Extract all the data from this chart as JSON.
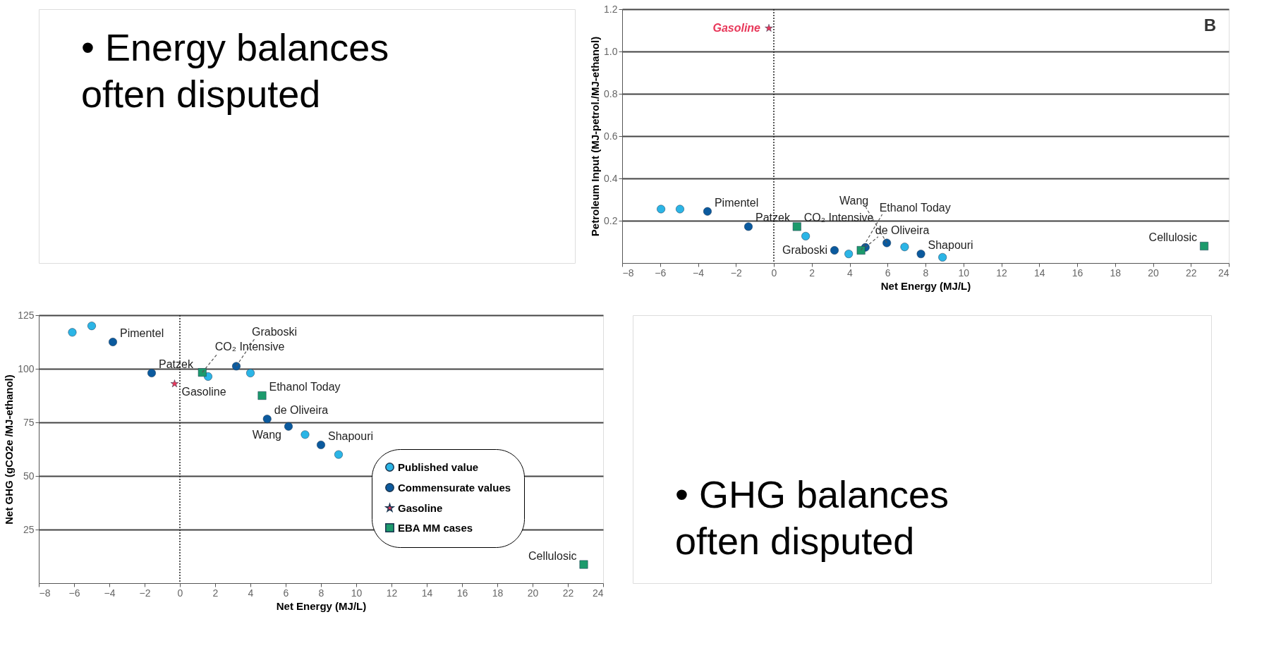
{
  "chart_data": [
    {
      "type": "scatter",
      "xlabel": "Net Energy (MJ/L)",
      "ylabel": "Net GHG (gCO2e /MJ-ethanol)",
      "xlim": [
        -8,
        24
      ],
      "xticks": [
        -8,
        -6,
        -4,
        -2,
        0,
        2,
        4,
        6,
        8,
        10,
        12,
        14,
        16,
        18,
        20,
        22,
        24
      ],
      "ylim": [
        0,
        125
      ],
      "yticks": [
        25,
        50,
        75,
        100,
        125
      ],
      "grid": "y",
      "legend": "bottom right",
      "series": [
        {
          "name": "Published value",
          "color": "#2bb5e6",
          "marker": "circle",
          "x": [
            -6.1,
            -5.0,
            1.6,
            4.0,
            7.1,
            9.0
          ],
          "values": [
            117,
            120,
            96.4,
            98,
            69.3,
            60
          ]
        },
        {
          "name": "Commensurate values",
          "color": "#0b5a9e",
          "marker": "circle",
          "x": [
            -3.8,
            -1.6,
            3.2,
            4.95,
            6.16,
            8.0
          ],
          "values": [
            112.5,
            98,
            101.2,
            76.6,
            73.1,
            64.5
          ]
        },
        {
          "name": "Gasoline",
          "color": "#e8385a",
          "marker": "star",
          "x": [
            -0.3
          ],
          "values": [
            93
          ]
        },
        {
          "name": "EBA MM cases",
          "color": "#1c9a6c",
          "marker": "square",
          "x": [
            1.27,
            4.66,
            22.9
          ],
          "values": [
            98.3,
            87.5,
            8.7
          ]
        }
      ],
      "ref_lines": [
        {
          "axis": "x",
          "value": 0,
          "line_style": "dotted"
        }
      ],
      "annotations": [
        "• GHG balances\noften disputed",
        {
          "text": "Pimentel",
          "x": -3.8,
          "y": 112.5
        },
        {
          "text": "Patzek",
          "x": -1.6,
          "y": 98
        },
        {
          "text": "Gasoline",
          "x": -0.3,
          "y": 93
        },
        {
          "text": "CO₂ Intensive",
          "x": 1.27,
          "y": 98.3
        },
        {
          "text": "Graboski",
          "x": 3.2,
          "y": 101.2
        },
        {
          "text": "Ethanol Today",
          "x": 4.66,
          "y": 87.5
        },
        {
          "text": "de Oliveira",
          "x": 4.95,
          "y": 76.6
        },
        {
          "text": "Wang",
          "x": 6.16,
          "y": 73.1
        },
        {
          "text": "Shapouri",
          "x": 8.0,
          "y": 64.5
        },
        {
          "text": "Cellulosic",
          "x": 22.9,
          "y": 8.7
        }
      ]
    },
    {
      "type": "scatter",
      "title": "B",
      "xlabel": "Net Energy (MJ/L)",
      "ylabel": "Petroleum Input (MJ-petrol./MJ-ethanol)",
      "xlim": [
        -8,
        24
      ],
      "xticks": [
        -8,
        -6,
        -4,
        -2,
        0,
        2,
        4,
        6,
        8,
        10,
        12,
        14,
        16,
        18,
        20,
        22,
        24
      ],
      "ylim": [
        0,
        1.2
      ],
      "yticks": [
        0.2,
        0.4,
        0.6,
        0.8,
        {
          "value": 1.0,
          "label": "1.0"
        },
        1.2
      ],
      "grid": "y",
      "series": [
        {
          "color": "#2bb5e6",
          "marker": "circle",
          "x": [
            -5.95,
            -4.95,
            1.68,
            3.95,
            6.9,
            8.9
          ],
          "values": [
            0.255,
            0.255,
            0.127,
            0.043,
            0.076,
            0.027
          ]
        },
        {
          "color": "#0b5a9e",
          "marker": "circle",
          "x": [
            -3.5,
            -1.34,
            3.2,
            4.83,
            5.96,
            7.76
          ],
          "values": [
            0.244,
            0.172,
            0.06,
            0.074,
            0.095,
            0.043
          ]
        },
        {
          "name": "Gasoline",
          "color": "#e8385a",
          "marker": "star",
          "x": [
            -0.26
          ],
          "values": [
            1.11
          ]
        },
        {
          "color": "#1c9a6c",
          "marker": "square",
          "x": [
            1.22,
            4.6,
            22.7
          ],
          "values": [
            0.172,
            0.06,
            0.08
          ]
        }
      ],
      "ref_lines": [
        {
          "axis": "x",
          "value": 0,
          "line_style": "dotted"
        }
      ],
      "annotations": [
        "• Energy balances\noften disputed",
        {
          "text": "Pimentel",
          "x": -3.5,
          "y": 0.244
        },
        {
          "text": "Patzek",
          "x": -1.34,
          "y": 0.172
        },
        {
          "text": "CO₂ Intensive",
          "x": 1.22,
          "y": 0.172
        },
        {
          "text": "Ethanol Today",
          "x": 4.6,
          "y": 0.06
        },
        {
          "text": "de Oliveira",
          "x": 4.83,
          "y": 0.074
        },
        {
          "text": "Wang",
          "x": 5.96,
          "y": 0.095
        },
        {
          "text": "Graboski",
          "x": 3.2,
          "y": 0.06
        },
        {
          "text": "Shapouri",
          "x": 7.76,
          "y": 0.043
        },
        {
          "text": "Cellulosic",
          "x": 22.7,
          "y": 0.08
        }
      ]
    }
  ]
}
